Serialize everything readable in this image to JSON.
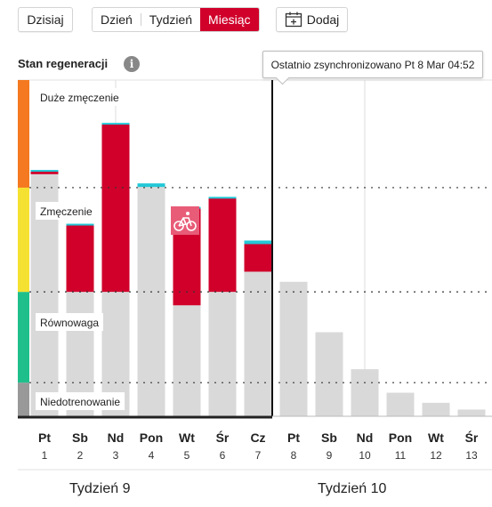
{
  "toolbar": {
    "today_label": "Dzisiaj",
    "views": [
      {
        "label": "Dzień",
        "active": false
      },
      {
        "label": "Tydzień",
        "active": false
      },
      {
        "label": "Miesiąc",
        "active": true
      }
    ],
    "add_label": "Dodaj",
    "add_icon": "calendar-plus-icon"
  },
  "panel": {
    "title": "Stan regeneracji",
    "info_icon": "info-icon",
    "sync_tooltip": "Ostatnio zsynchronizowano Pt 8 Mar 04:52"
  },
  "zones": [
    {
      "label": "Duże zmęczenie",
      "color": "#f47920"
    },
    {
      "label": "Zmęczenie",
      "color": "#f5e131"
    },
    {
      "label": "Równowaga",
      "color": "#1fbf8c"
    },
    {
      "label": "Niedotrenowanie",
      "color": "#999999"
    }
  ],
  "colors": {
    "accent": "#d0002b",
    "highlight": "#22c7d6",
    "bar": "#d9d9d9",
    "today": "#d0002b"
  },
  "chart_data": {
    "type": "bar",
    "categories": [
      "Pt 1",
      "Sb 2",
      "Nd 3",
      "Pon 4",
      "Wt 5",
      "Śr 6",
      "Cz 7",
      "Pt 8",
      "Sb 9",
      "Nd 10",
      "Pon 11",
      "Wt 12",
      "Śr 13"
    ],
    "days": [
      {
        "day": "Pt",
        "num": "1",
        "base": 72,
        "load": 1,
        "today": false
      },
      {
        "day": "Sb",
        "num": "2",
        "base": 37,
        "load": 20,
        "today": false
      },
      {
        "day": "Nd",
        "num": "3",
        "base": 37,
        "load": 50,
        "today": false
      },
      {
        "day": "Pon",
        "num": "4",
        "base": 69,
        "load": 0,
        "today": false
      },
      {
        "day": "Wt",
        "num": "5",
        "base": 33,
        "load": 29,
        "today": false
      },
      {
        "day": "Śr",
        "num": "6",
        "base": 37,
        "load": 28,
        "today": false
      },
      {
        "day": "Cz",
        "num": "7",
        "base": 43,
        "load": 9,
        "today": false
      },
      {
        "day": "Pt",
        "num": "8",
        "base": 40,
        "load": 0,
        "today": true
      },
      {
        "day": "Sb",
        "num": "9",
        "base": 25,
        "load": 0,
        "today": false
      },
      {
        "day": "Nd",
        "num": "10",
        "base": 14,
        "load": 0,
        "today": false
      },
      {
        "day": "Pon",
        "num": "11",
        "base": 7,
        "load": 0,
        "today": false
      },
      {
        "day": "Wt",
        "num": "12",
        "base": 4,
        "load": 0,
        "today": false
      },
      {
        "day": "Śr",
        "num": "13",
        "base": 2,
        "load": 0,
        "today": false
      }
    ],
    "zone_thresholds": [
      0,
      10,
      37,
      68,
      100
    ],
    "activity_icon": "cycling-icon",
    "activity_day_index": 4,
    "weeks": [
      {
        "label": "Tydzień 9"
      },
      {
        "label": "Tydzień 10"
      }
    ],
    "ylim": [
      0,
      100
    ]
  }
}
